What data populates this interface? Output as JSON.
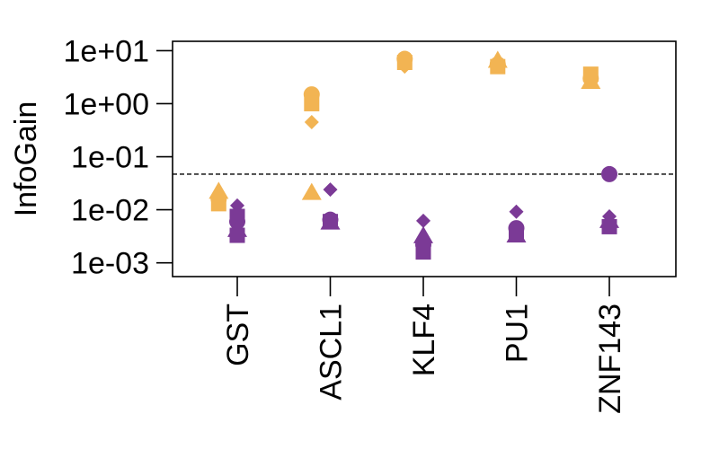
{
  "chart_data": {
    "type": "scatter",
    "title": "",
    "xlabel": "",
    "ylabel": "InfoGain",
    "y_scale": "log10",
    "ylim": [
      0.00055,
      15
    ],
    "categories": [
      "GST",
      "ASCL1",
      "KLF4",
      "PU1",
      "ZNF143"
    ],
    "y_ticks": [
      {
        "value": 0.001,
        "label": "1e-03"
      },
      {
        "value": 0.01,
        "label": "1e-02"
      },
      {
        "value": 0.1,
        "label": "1e-01"
      },
      {
        "value": 1,
        "label": "1e+00"
      },
      {
        "value": 10,
        "label": "1e+01"
      }
    ],
    "threshold_line": 0.047,
    "grid": false,
    "groups": [
      {
        "color": "#F2B453",
        "offset": -0.2,
        "points": [
          {
            "category": "GST",
            "y": 0.022,
            "shape": "triangle"
          },
          {
            "category": "GST",
            "y": 0.018,
            "shape": "diamond"
          },
          {
            "category": "GST",
            "y": 0.016,
            "shape": "circle"
          },
          {
            "category": "GST",
            "y": 0.013,
            "shape": "square"
          },
          {
            "category": "ASCL1",
            "y": 1.5,
            "shape": "circle"
          },
          {
            "category": "ASCL1",
            "y": 1.0,
            "shape": "square"
          },
          {
            "category": "ASCL1",
            "y": 0.45,
            "shape": "diamond"
          },
          {
            "category": "ASCL1",
            "y": 0.021,
            "shape": "triangle"
          },
          {
            "category": "KLF4",
            "y": 7.0,
            "shape": "circle"
          },
          {
            "category": "KLF4",
            "y": 6.0,
            "shape": "square"
          },
          {
            "category": "KLF4",
            "y": 5.0,
            "shape": "diamond"
          },
          {
            "category": "PU1",
            "y": 6.5,
            "shape": "triangle"
          },
          {
            "category": "PU1",
            "y": 5.5,
            "shape": "circle"
          },
          {
            "category": "PU1",
            "y": 5.0,
            "shape": "square"
          },
          {
            "category": "ZNF143",
            "y": 3.6,
            "shape": "square"
          },
          {
            "category": "ZNF143",
            "y": 3.0,
            "shape": "circle"
          },
          {
            "category": "ZNF143",
            "y": 2.6,
            "shape": "triangle"
          }
        ]
      },
      {
        "color": "#7B3A96",
        "offset": 0.0,
        "points": [
          {
            "category": "GST",
            "y": 0.012,
            "shape": "diamond"
          },
          {
            "category": "GST",
            "y": 0.0075,
            "shape": "square"
          },
          {
            "category": "GST",
            "y": 0.006,
            "shape": "circle"
          },
          {
            "category": "GST",
            "y": 0.0042,
            "shape": "triangle"
          },
          {
            "category": "GST",
            "y": 0.0033,
            "shape": "square"
          },
          {
            "category": "ASCL1",
            "y": 0.024,
            "shape": "diamond"
          },
          {
            "category": "ASCL1",
            "y": 0.0065,
            "shape": "circle"
          },
          {
            "category": "ASCL1",
            "y": 0.006,
            "shape": "square"
          },
          {
            "category": "ASCL1",
            "y": 0.0058,
            "shape": "triangle"
          },
          {
            "category": "KLF4",
            "y": 0.0062,
            "shape": "diamond"
          },
          {
            "category": "KLF4",
            "y": 0.0032,
            "shape": "triangle"
          },
          {
            "category": "KLF4",
            "y": 0.0022,
            "shape": "circle"
          },
          {
            "category": "KLF4",
            "y": 0.0016,
            "shape": "square"
          },
          {
            "category": "PU1",
            "y": 0.0092,
            "shape": "diamond"
          },
          {
            "category": "PU1",
            "y": 0.0045,
            "shape": "circle"
          },
          {
            "category": "PU1",
            "y": 0.0036,
            "shape": "square"
          },
          {
            "category": "PU1",
            "y": 0.0033,
            "shape": "triangle"
          },
          {
            "category": "ZNF143",
            "y": 0.047,
            "shape": "circle"
          },
          {
            "category": "ZNF143",
            "y": 0.0075,
            "shape": "diamond"
          },
          {
            "category": "ZNF143",
            "y": 0.0062,
            "shape": "triangle"
          },
          {
            "category": "ZNF143",
            "y": 0.0048,
            "shape": "square"
          }
        ]
      }
    ]
  }
}
